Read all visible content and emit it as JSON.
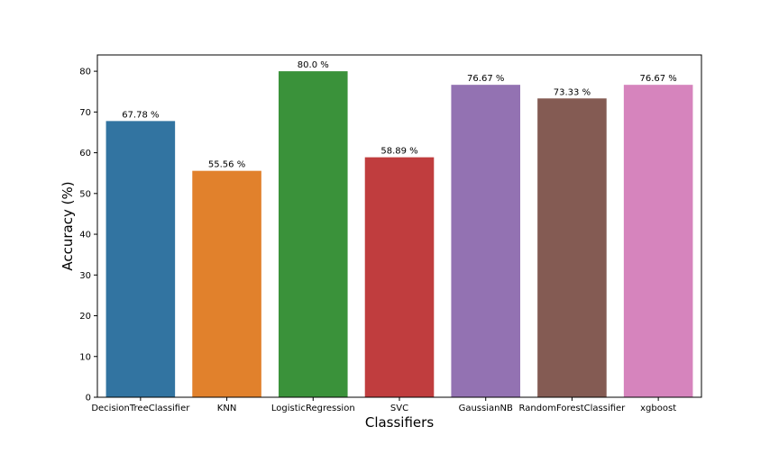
{
  "chart_data": {
    "type": "bar",
    "title": "",
    "xlabel": "Classifiers",
    "ylabel": "Accuracy (%)",
    "categories": [
      "DecisionTreeClassifier",
      "KNN",
      "LogisticRegression",
      "SVC",
      "GaussianNB",
      "RandomForestClassifier",
      "xgboost"
    ],
    "values": [
      67.78,
      55.56,
      80.0,
      58.89,
      76.67,
      73.33,
      76.67
    ],
    "data_labels": [
      "67.78 %",
      "55.56 %",
      "80.0 %",
      "58.89 %",
      "76.67 %",
      "73.33 %",
      "76.67 %"
    ],
    "colors": [
      "#3274a1",
      "#e1812c",
      "#3a923a",
      "#c03d3e",
      "#9372b2",
      "#845b53",
      "#d684bd"
    ],
    "ylim": [
      0,
      84
    ],
    "yticks": [
      0,
      10,
      20,
      30,
      40,
      50,
      60,
      70,
      80
    ],
    "grid": false,
    "legend": "none"
  }
}
